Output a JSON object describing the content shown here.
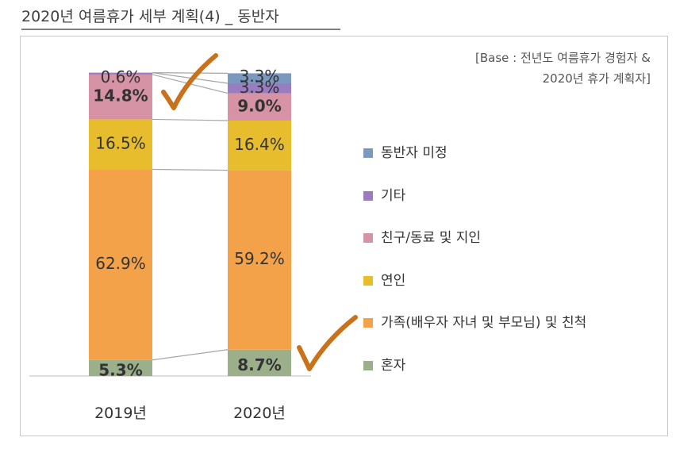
{
  "title": "2020년 여름휴가 세부 계획(4) _ 동반자",
  "base_note": {
    "line1": "[Base : 전년도 여름휴가 경험자 &",
    "line2": "2020년 휴가 계획자]"
  },
  "chart_data": {
    "type": "bar",
    "stacked": true,
    "percent_scale": true,
    "categories": [
      "2019년",
      "2020년"
    ],
    "series": [
      {
        "name": "혼자",
        "values": [
          5.3,
          8.7
        ],
        "color": "#9bb08a"
      },
      {
        "name": "가족(배우자 자녀 및 부모님) 및 친척",
        "values": [
          62.9,
          59.2
        ],
        "color": "#f3a24a"
      },
      {
        "name": "연인",
        "values": [
          16.5,
          16.4
        ],
        "color": "#e7bd2e"
      },
      {
        "name": "친구/동료 및 지인",
        "values": [
          14.8,
          9.0
        ],
        "color": "#d593a5"
      },
      {
        "name": "기타",
        "values": [
          0.6,
          3.3
        ],
        "color": "#9a7cc0"
      },
      {
        "name": "동반자 미정",
        "values": [
          null,
          3.3
        ],
        "color": "#7b98bf"
      }
    ],
    "data_labels": [
      [
        "5.3%",
        "8.7%"
      ],
      [
        "62.9%",
        "59.2%"
      ],
      [
        "16.5%",
        "16.4%"
      ],
      [
        "14.8%",
        "9.0%"
      ],
      [
        "0.6%",
        "3.3%"
      ],
      [
        "",
        "3.3%"
      ]
    ],
    "bold_labels": [
      "혼자",
      "친구/동료 및 지인"
    ],
    "legend_position": "right",
    "annotations": [
      "checkmark-2019-friends",
      "checkmark-2020-alone"
    ],
    "accent_color": "#c8731c"
  }
}
